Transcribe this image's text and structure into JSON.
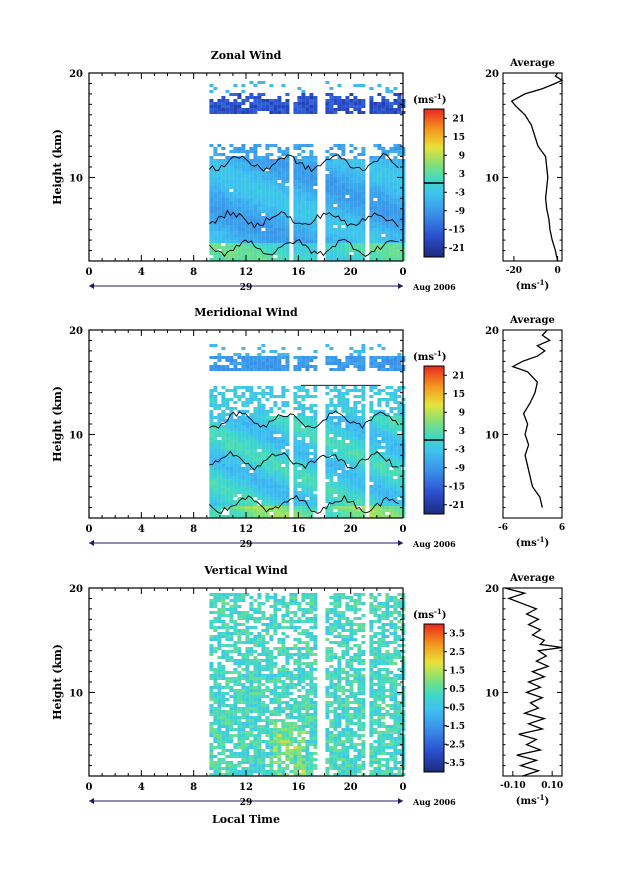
{
  "figure": {
    "xlabel": "Local Time",
    "date_label": "Aug 2006",
    "day_label": "29",
    "unit_label": "(ms",
    "unit_sup": "-1",
    "unit_close": ")",
    "avg_unit_label": "(ms",
    "avg_unit_sup": "-1",
    "avg_unit_close": ")"
  },
  "chart_data": [
    {
      "type": "heatmap",
      "title": "Zonal Wind",
      "ylabel": "Height (km)",
      "xlim": [
        0,
        24
      ],
      "x_ticks": [
        "0",
        "4",
        "8",
        "12",
        "16",
        "20",
        "0"
      ],
      "x_tick_values": [
        0,
        4,
        8,
        12,
        16,
        20,
        24
      ],
      "ylim": [
        2,
        20
      ],
      "y_ticks": [
        "10",
        "20"
      ],
      "y_tick_values": [
        10,
        20
      ],
      "data_x_start": 9.2,
      "data_gaps_x": [
        15.3,
        17.6,
        21.1
      ],
      "colorbar": {
        "ticks": [
          "21",
          "15",
          "9",
          "3",
          "-3",
          "-9",
          "-15",
          "-21"
        ],
        "range": [
          -24,
          24
        ],
        "zero_line": true
      },
      "average": {
        "title": "Average",
        "xlim": [
          -25,
          2
        ],
        "x_ticks": [
          "-20",
          "0"
        ],
        "x_tick_values": [
          -20,
          0
        ],
        "y_ticks": [
          "10",
          "20"
        ],
        "profile": [
          [
            0.0,
            2
          ],
          [
            -1.0,
            3
          ],
          [
            -2.5,
            4
          ],
          [
            -3.5,
            5
          ],
          [
            -4.0,
            6
          ],
          [
            -5.0,
            7
          ],
          [
            -5.5,
            8
          ],
          [
            -5.0,
            9
          ],
          [
            -4.5,
            10
          ],
          [
            -5.0,
            11
          ],
          [
            -5.5,
            12
          ],
          [
            -9.0,
            13
          ],
          [
            -10.5,
            14
          ],
          [
            -12.0,
            15
          ],
          [
            -15.0,
            16
          ],
          [
            -19.0,
            16.8
          ],
          [
            -21.0,
            17.3
          ],
          [
            -15.0,
            18
          ],
          [
            -7.0,
            18.5
          ],
          [
            -1.0,
            19.0
          ],
          [
            2.0,
            19.3
          ],
          [
            -1.0,
            19.7
          ],
          [
            0.0,
            20
          ]
        ]
      }
    },
    {
      "type": "heatmap",
      "title": "Meridional Wind",
      "ylabel": "Height (km)",
      "xlim": [
        0,
        24
      ],
      "x_ticks": [
        "0",
        "4",
        "8",
        "12",
        "16",
        "20",
        "0"
      ],
      "x_tick_values": [
        0,
        4,
        8,
        12,
        16,
        20,
        24
      ],
      "ylim": [
        2,
        20
      ],
      "y_ticks": [
        "10",
        "20"
      ],
      "y_tick_values": [
        10,
        20
      ],
      "data_x_start": 9.2,
      "data_gaps_x": [
        15.3,
        17.6,
        21.1
      ],
      "colorbar": {
        "ticks": [
          "21",
          "15",
          "9",
          "3",
          "-3",
          "-9",
          "-15",
          "-21"
        ],
        "range": [
          -24,
          24
        ],
        "zero_line": true
      },
      "average": {
        "title": "Average",
        "xlim": [
          -6,
          6
        ],
        "x_ticks": [
          "-6",
          "6"
        ],
        "x_tick_values": [
          -6,
          6
        ],
        "y_ticks": [
          "10",
          "20"
        ],
        "profile": [
          [
            2.0,
            3
          ],
          [
            1.5,
            4
          ],
          [
            0.0,
            5
          ],
          [
            -0.5,
            6
          ],
          [
            -1.0,
            7
          ],
          [
            -1.5,
            8
          ],
          [
            -0.8,
            9
          ],
          [
            -1.5,
            10
          ],
          [
            -1.0,
            11
          ],
          [
            -1.8,
            12
          ],
          [
            -0.5,
            13
          ],
          [
            0.5,
            14
          ],
          [
            1.0,
            15
          ],
          [
            -1.0,
            16
          ],
          [
            -4.0,
            16.5
          ],
          [
            -2.0,
            17
          ],
          [
            1.0,
            17.5
          ],
          [
            2.5,
            18
          ],
          [
            1.0,
            18.5
          ],
          [
            3.5,
            19
          ],
          [
            2.0,
            19.5
          ],
          [
            3.0,
            20
          ]
        ]
      }
    },
    {
      "type": "heatmap",
      "title": "Vertical Wind",
      "ylabel": "Height (km)",
      "xlim": [
        0,
        24
      ],
      "x_ticks": [
        "0",
        "4",
        "8",
        "12",
        "16",
        "20",
        "0"
      ],
      "x_tick_values": [
        0,
        4,
        8,
        12,
        16,
        20,
        24
      ],
      "ylim": [
        2,
        20
      ],
      "y_ticks": [
        "10",
        "20"
      ],
      "y_tick_values": [
        10,
        20
      ],
      "data_x_start": 9.2,
      "data_gaps_x": [
        17.6,
        21.1
      ],
      "colorbar": {
        "ticks": [
          "3.5",
          "2.5",
          "1.5",
          "0.5",
          "-0.5",
          "-1.5",
          "-2.5",
          "-3.5"
        ],
        "range": [
          -4,
          4
        ],
        "zero_line": false
      },
      "average": {
        "title": "Average",
        "xlim": [
          -0.15,
          0.15
        ],
        "x_ticks": [
          "-0.10",
          "0.10"
        ],
        "x_tick_values": [
          -0.1,
          0.1
        ],
        "y_ticks": [
          "10",
          "20"
        ],
        "profile": [
          [
            -0.05,
            2
          ],
          [
            0.03,
            2.5
          ],
          [
            -0.06,
            3
          ],
          [
            0.02,
            3.5
          ],
          [
            -0.08,
            4
          ],
          [
            0.04,
            4.5
          ],
          [
            -0.03,
            5
          ],
          [
            0.02,
            5.5
          ],
          [
            -0.07,
            6
          ],
          [
            0.05,
            6.5
          ],
          [
            -0.02,
            7
          ],
          [
            0.06,
            7.5
          ],
          [
            -0.04,
            8
          ],
          [
            0.03,
            8.5
          ],
          [
            -0.01,
            9
          ],
          [
            0.05,
            9.5
          ],
          [
            -0.03,
            10
          ],
          [
            0.04,
            10.5
          ],
          [
            -0.02,
            11
          ],
          [
            0.06,
            11.5
          ],
          [
            0.0,
            12
          ],
          [
            0.08,
            12.5
          ],
          [
            0.02,
            13
          ],
          [
            0.07,
            13.5
          ],
          [
            0.03,
            14
          ],
          [
            0.15,
            14.3
          ],
          [
            0.04,
            14.6
          ],
          [
            0.06,
            15
          ],
          [
            0.0,
            15.5
          ],
          [
            0.04,
            16
          ],
          [
            -0.02,
            16.5
          ],
          [
            0.03,
            17
          ],
          [
            -0.03,
            17.5
          ],
          [
            0.02,
            18
          ],
          [
            -0.05,
            18.5
          ],
          [
            -0.12,
            19
          ],
          [
            -0.04,
            19.5
          ],
          [
            -0.14,
            20
          ]
        ]
      }
    }
  ]
}
